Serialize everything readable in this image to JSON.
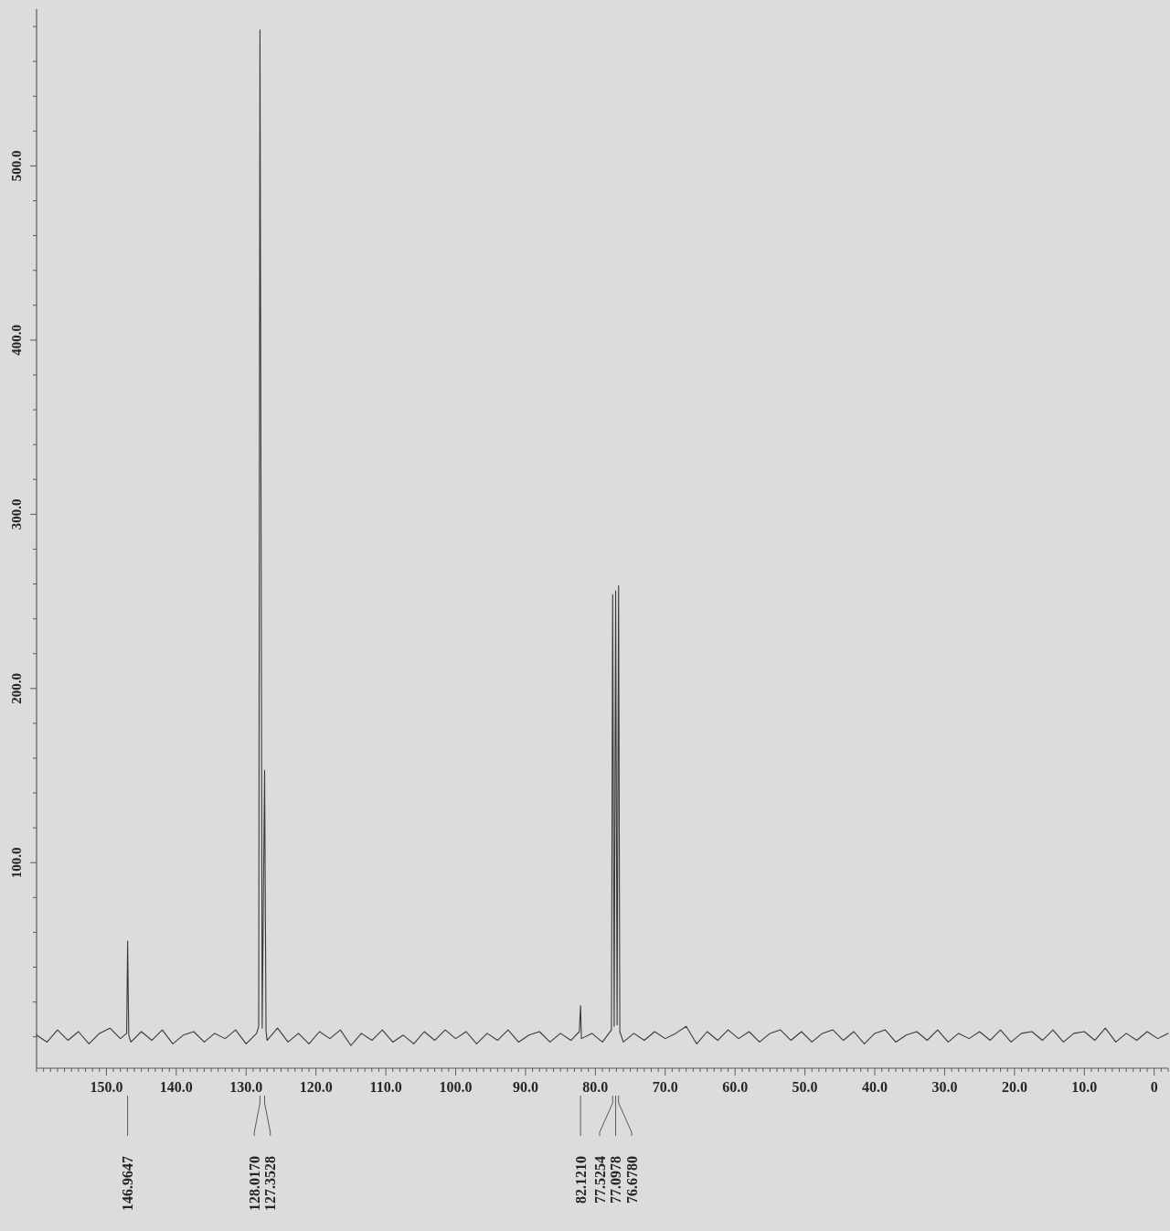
{
  "chart_data": {
    "type": "line",
    "x": [
      160,
      158.5,
      157,
      155.5,
      154,
      152.5,
      151,
      149.5,
      148,
      147.1,
      146.9647,
      146.8,
      146.5,
      145,
      143.5,
      142,
      140.5,
      139,
      137.5,
      136,
      134.5,
      133,
      131.5,
      130,
      128.5,
      128.2,
      128.017,
      127.7,
      127.3528,
      127.15,
      127,
      125.5,
      124,
      122.5,
      121,
      119.5,
      118,
      116.5,
      115,
      113.5,
      112,
      110.5,
      109,
      107.5,
      106,
      104.5,
      103,
      101.5,
      100,
      98.5,
      97,
      95.5,
      94,
      92.5,
      91,
      89.5,
      88,
      86.5,
      85,
      83.5,
      82.3,
      82.121,
      82,
      80.5,
      79,
      77.7,
      77.5254,
      77.31,
      77.0978,
      76.89,
      76.678,
      76.5,
      76,
      74.5,
      73,
      71.5,
      70,
      68.5,
      67,
      65.5,
      64,
      62.5,
      61,
      59.5,
      58,
      56.5,
      55,
      53.5,
      52,
      50.5,
      49,
      47.5,
      46,
      44.5,
      43,
      41.5,
      40,
      38.5,
      37,
      35.5,
      34,
      32.5,
      31,
      29.5,
      28,
      26.5,
      25,
      23.5,
      22,
      20.5,
      19,
      17.5,
      16,
      14.5,
      13,
      11.5,
      10,
      8.5,
      7,
      5.5,
      4,
      2.5,
      1,
      -0.5,
      -2
    ],
    "series": [
      {
        "color": "#3a3a3a",
        "values": [
          1,
          -3,
          4,
          -2,
          3,
          -4,
          2,
          5,
          -1,
          2,
          55,
          1,
          -3,
          3,
          -2,
          4,
          -4,
          1,
          3,
          -3,
          2,
          -1,
          4,
          -4,
          2,
          6,
          578,
          5,
          153,
          4,
          -2,
          5,
          -3,
          2,
          -4,
          3,
          -1,
          4,
          -5,
          2,
          -2,
          4,
          -3,
          1,
          -4,
          3,
          -2,
          4,
          -1,
          3,
          -4,
          2,
          -2,
          4,
          -3,
          1,
          3,
          -3,
          2,
          -2,
          3,
          18,
          -1,
          2,
          -3,
          4,
          254,
          6,
          256,
          7,
          259,
          3,
          -3,
          2,
          -2,
          3,
          -1,
          2,
          6,
          -4,
          3,
          -2,
          4,
          -1,
          3,
          -3,
          2,
          4,
          -2,
          3,
          -3,
          2,
          4,
          -2,
          3,
          -4,
          2,
          4,
          -3,
          1,
          3,
          -2,
          4,
          -3,
          2,
          -1,
          3,
          -2,
          4,
          -3,
          2,
          3,
          -2,
          4,
          -3,
          2,
          3,
          -2,
          5,
          -3,
          2,
          -2,
          3,
          -1,
          2
        ]
      }
    ],
    "xlim": [
      160,
      -2
    ],
    "ylim": [
      -18,
      590
    ],
    "xticks": [
      {
        "value": 160,
        "label": null
      },
      {
        "value": 159,
        "label": null
      },
      {
        "value": 158,
        "label": null
      },
      {
        "value": 157,
        "label": null
      },
      {
        "value": 156,
        "label": null
      },
      {
        "value": 155,
        "label": null
      },
      {
        "value": 154,
        "label": null
      },
      {
        "value": 153,
        "label": null
      },
      {
        "value": 152,
        "label": null
      },
      {
        "value": 151,
        "label": null
      },
      {
        "value": 150,
        "label": "150.0"
      },
      {
        "value": 149,
        "label": null
      },
      {
        "value": 148,
        "label": null
      },
      {
        "value": 147,
        "label": null
      },
      {
        "value": 146,
        "label": null
      },
      {
        "value": 145,
        "label": null
      },
      {
        "value": 144,
        "label": null
      },
      {
        "value": 143,
        "label": null
      },
      {
        "value": 142,
        "label": null
      },
      {
        "value": 141,
        "label": null
      },
      {
        "value": 140,
        "label": "140.0"
      },
      {
        "value": 139,
        "label": null
      },
      {
        "value": 138,
        "label": null
      },
      {
        "value": 137,
        "label": null
      },
      {
        "value": 136,
        "label": null
      },
      {
        "value": 135,
        "label": null
      },
      {
        "value": 134,
        "label": null
      },
      {
        "value": 133,
        "label": null
      },
      {
        "value": 132,
        "label": null
      },
      {
        "value": 131,
        "label": null
      },
      {
        "value": 130,
        "label": "130.0"
      },
      {
        "value": 129,
        "label": null
      },
      {
        "value": 128,
        "label": null
      },
      {
        "value": 127,
        "label": null
      },
      {
        "value": 126,
        "label": null
      },
      {
        "value": 125,
        "label": null
      },
      {
        "value": 124,
        "label": null
      },
      {
        "value": 123,
        "label": null
      },
      {
        "value": 122,
        "label": null
      },
      {
        "value": 121,
        "label": null
      },
      {
        "value": 120,
        "label": "120.0"
      },
      {
        "value": 119,
        "label": null
      },
      {
        "value": 118,
        "label": null
      },
      {
        "value": 117,
        "label": null
      },
      {
        "value": 116,
        "label": null
      },
      {
        "value": 115,
        "label": null
      },
      {
        "value": 114,
        "label": null
      },
      {
        "value": 113,
        "label": null
      },
      {
        "value": 112,
        "label": null
      },
      {
        "value": 111,
        "label": null
      },
      {
        "value": 110,
        "label": "110.0"
      },
      {
        "value": 109,
        "label": null
      },
      {
        "value": 108,
        "label": null
      },
      {
        "value": 107,
        "label": null
      },
      {
        "value": 106,
        "label": null
      },
      {
        "value": 105,
        "label": null
      },
      {
        "value": 104,
        "label": null
      },
      {
        "value": 103,
        "label": null
      },
      {
        "value": 102,
        "label": null
      },
      {
        "value": 101,
        "label": null
      },
      {
        "value": 100,
        "label": "100.0"
      },
      {
        "value": 99,
        "label": null
      },
      {
        "value": 98,
        "label": null
      },
      {
        "value": 97,
        "label": null
      },
      {
        "value": 96,
        "label": null
      },
      {
        "value": 95,
        "label": null
      },
      {
        "value": 94,
        "label": null
      },
      {
        "value": 93,
        "label": null
      },
      {
        "value": 92,
        "label": null
      },
      {
        "value": 91,
        "label": null
      },
      {
        "value": 90,
        "label": "90.0"
      },
      {
        "value": 89,
        "label": null
      },
      {
        "value": 88,
        "label": null
      },
      {
        "value": 87,
        "label": null
      },
      {
        "value": 86,
        "label": null
      },
      {
        "value": 85,
        "label": null
      },
      {
        "value": 84,
        "label": null
      },
      {
        "value": 83,
        "label": null
      },
      {
        "value": 82,
        "label": null
      },
      {
        "value": 81,
        "label": null
      },
      {
        "value": 80,
        "label": "80.0"
      },
      {
        "value": 79,
        "label": null
      },
      {
        "value": 78,
        "label": null
      },
      {
        "value": 77,
        "label": null
      },
      {
        "value": 76,
        "label": null
      },
      {
        "value": 75,
        "label": null
      },
      {
        "value": 74,
        "label": null
      },
      {
        "value": 73,
        "label": null
      },
      {
        "value": 72,
        "label": null
      },
      {
        "value": 71,
        "label": null
      },
      {
        "value": 70,
        "label": "70.0"
      },
      {
        "value": 69,
        "label": null
      },
      {
        "value": 68,
        "label": null
      },
      {
        "value": 67,
        "label": null
      },
      {
        "value": 66,
        "label": null
      },
      {
        "value": 65,
        "label": null
      },
      {
        "value": 64,
        "label": null
      },
      {
        "value": 63,
        "label": null
      },
      {
        "value": 62,
        "label": null
      },
      {
        "value": 61,
        "label": null
      },
      {
        "value": 60,
        "label": "60.0"
      },
      {
        "value": 59,
        "label": null
      },
      {
        "value": 58,
        "label": null
      },
      {
        "value": 57,
        "label": null
      },
      {
        "value": 56,
        "label": null
      },
      {
        "value": 55,
        "label": null
      },
      {
        "value": 54,
        "label": null
      },
      {
        "value": 53,
        "label": null
      },
      {
        "value": 52,
        "label": null
      },
      {
        "value": 51,
        "label": null
      },
      {
        "value": 50,
        "label": "50.0"
      },
      {
        "value": 49,
        "label": null
      },
      {
        "value": 48,
        "label": null
      },
      {
        "value": 47,
        "label": null
      },
      {
        "value": 46,
        "label": null
      },
      {
        "value": 45,
        "label": null
      },
      {
        "value": 44,
        "label": null
      },
      {
        "value": 43,
        "label": null
      },
      {
        "value": 42,
        "label": null
      },
      {
        "value": 41,
        "label": null
      },
      {
        "value": 40,
        "label": "40.0"
      },
      {
        "value": 39,
        "label": null
      },
      {
        "value": 38,
        "label": null
      },
      {
        "value": 37,
        "label": null
      },
      {
        "value": 36,
        "label": null
      },
      {
        "value": 35,
        "label": null
      },
      {
        "value": 34,
        "label": null
      },
      {
        "value": 33,
        "label": null
      },
      {
        "value": 32,
        "label": null
      },
      {
        "value": 31,
        "label": null
      },
      {
        "value": 30,
        "label": "30.0"
      },
      {
        "value": 29,
        "label": null
      },
      {
        "value": 28,
        "label": null
      },
      {
        "value": 27,
        "label": null
      },
      {
        "value": 26,
        "label": null
      },
      {
        "value": 25,
        "label": null
      },
      {
        "value": 24,
        "label": null
      },
      {
        "value": 23,
        "label": null
      },
      {
        "value": 22,
        "label": null
      },
      {
        "value": 21,
        "label": null
      },
      {
        "value": 20,
        "label": "20.0"
      },
      {
        "value": 19,
        "label": null
      },
      {
        "value": 18,
        "label": null
      },
      {
        "value": 17,
        "label": null
      },
      {
        "value": 16,
        "label": null
      },
      {
        "value": 15,
        "label": null
      },
      {
        "value": 14,
        "label": null
      },
      {
        "value": 13,
        "label": null
      },
      {
        "value": 12,
        "label": null
      },
      {
        "value": 11,
        "label": null
      },
      {
        "value": 10,
        "label": "10.0"
      },
      {
        "value": 9,
        "label": null
      },
      {
        "value": 8,
        "label": null
      },
      {
        "value": 7,
        "label": null
      },
      {
        "value": 6,
        "label": null
      },
      {
        "value": 5,
        "label": null
      },
      {
        "value": 4,
        "label": null
      },
      {
        "value": 3,
        "label": null
      },
      {
        "value": 2,
        "label": null
      },
      {
        "value": 1,
        "label": null
      },
      0,
      {
        "value": -1,
        "label": null
      },
      {
        "value": -2,
        "label": null
      }
    ],
    "yticks": [
      {
        "value": 0,
        "label": null
      },
      {
        "value": 20,
        "label": null
      },
      {
        "value": 40,
        "label": null
      },
      {
        "value": 60,
        "label": null
      },
      {
        "value": 80,
        "label": null
      },
      {
        "value": 100,
        "label": "100.0"
      },
      {
        "value": 120,
        "label": null
      },
      {
        "value": 140,
        "label": null
      },
      {
        "value": 160,
        "label": null
      },
      {
        "value": 180,
        "label": null
      },
      {
        "value": 200,
        "label": "200.0"
      },
      {
        "value": 220,
        "label": null
      },
      {
        "value": 240,
        "label": null
      },
      {
        "value": 260,
        "label": null
      },
      {
        "value": 280,
        "label": null
      },
      {
        "value": 300,
        "label": "300.0"
      },
      {
        "value": 320,
        "label": null
      },
      {
        "value": 340,
        "label": null
      },
      {
        "value": 360,
        "label": null
      },
      {
        "value": 380,
        "label": null
      },
      {
        "value": 400,
        "label": "400.0"
      },
      {
        "value": 420,
        "label": null
      },
      {
        "value": 440,
        "label": null
      },
      {
        "value": 460,
        "label": null
      },
      {
        "value": 480,
        "label": null
      },
      {
        "value": 500,
        "label": "500.0"
      },
      {
        "value": 520,
        "label": null
      },
      {
        "value": 540,
        "label": null
      },
      {
        "value": 560,
        "label": null
      },
      {
        "value": 580,
        "label": null
      }
    ],
    "annotations": [
      "146.9647",
      "128.0170",
      "127.3528",
      "82.1210",
      "77.5254",
      "77.0978",
      "76.6780"
    ]
  }
}
